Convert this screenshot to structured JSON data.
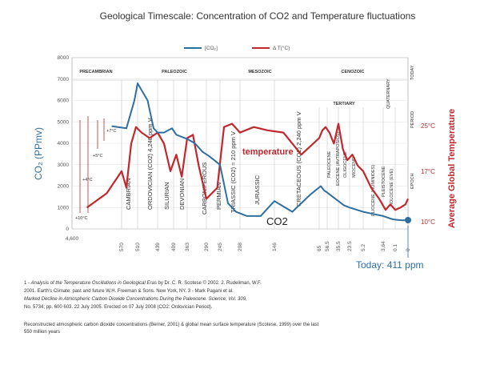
{
  "chart_data": {
    "type": "line",
    "title": "Geological Timescale: Concentration of CO2 and Temperature fluctuations",
    "legend": [
      {
        "name": "[CO₂]",
        "color": "#2f6f9f"
      },
      {
        "name": "Δ T(°C)",
        "color": "#c0282d"
      }
    ],
    "ylabel_left": "CO₂ (PPmv)",
    "ylabel_right": "Average Global Temperature",
    "y_left_ticks": [
      "8000",
      "7000",
      "6000",
      "5000",
      "4000",
      "3000",
      "2000",
      "1000",
      "0"
    ],
    "y_right_ticks": [
      "25°C",
      "17°C",
      "10°C"
    ],
    "y_right_side_labels": [
      "TODAY",
      "PERIOD",
      "EPOCH"
    ],
    "ylim_left": [
      0,
      8000
    ],
    "x_ticks": [
      "4,600",
      "570",
      "510",
      "439",
      "409",
      "363",
      "290",
      "245",
      "208",
      "146",
      "65",
      "56.5",
      "35.5",
      "23.5",
      "5.2",
      "3.64",
      "0.1",
      "0"
    ],
    "eras": [
      "PRECAMBRIAN",
      "PALEOZOIC",
      "MESOZOIC",
      "CENOZOIC"
    ],
    "tertiary": "TERTIARY",
    "quaternary": "QUATERNARY",
    "periods": [
      "CAMBRIAN",
      "ORDOVICIAN (CO2) 4,240 ppm V",
      "SILURIAN",
      "DEVONIAN",
      "CARBONIFEROUS",
      "PERMIAN",
      "TRIASSIC (CO2) = 210 ppm V",
      "JURASSIC",
      "CRETACEOUS (CO2) 2,240 ppm V"
    ],
    "epochs": [
      "PALEOCENE",
      "EOCENE (AVTRAPOSIOS)",
      "OLIGOCENE",
      "MIOCENE",
      "PLIOCENE (HOMINIDES)",
      "PLEISTOCENE",
      "HOLOCENE (EVE)"
    ],
    "temp_annotations": [
      "+7°C",
      "+5°C",
      "+4°C",
      "+10°C"
    ],
    "curve_labels": {
      "temperature": "temperature",
      "co2": "CO2"
    },
    "today": "Today: 411 ppm",
    "series": [
      {
        "name": "[CO₂]",
        "color": "#2f6f9f",
        "x_index": [
          0.8,
          1.3,
          1.8,
          2.0,
          2.5,
          2.8,
          3.0,
          3.4,
          3.9,
          4.2,
          4.6,
          5.0,
          5.4,
          5.8,
          6.2,
          6.6,
          7.0,
          7.4,
          7.8,
          8.2,
          8.6,
          9.0,
          9.4,
          9.8,
          10.2,
          10.6,
          11.0,
          11.5,
          12.0,
          12.5,
          13.0,
          13.5,
          14.0,
          14.5,
          15.0,
          15.5,
          15.8,
          16.2,
          16.6,
          17.0
        ],
        "values": [
          4800,
          4700,
          6000,
          6800,
          6000,
          4700,
          4500,
          4500,
          4700,
          4400,
          4300,
          4200,
          4000,
          3600,
          3400,
          3200,
          3000,
          1200,
          800,
          600,
          600,
          1300,
          800,
          1600,
          2000,
          1800,
          1700,
          1500,
          1300,
          1100,
          1000,
          900,
          800,
          700,
          600,
          500,
          450,
          420,
          400,
          411
        ]
      },
      {
        "name": "Δ T(°C)",
        "color": "#c0282d",
        "x_index": [
          0.3,
          0.7,
          1.0,
          1.3,
          1.6,
          1.9,
          2.2,
          2.6,
          3.0,
          3.4,
          3.8,
          4.2,
          4.6,
          5.0,
          5.3,
          5.6,
          6.0,
          6.4,
          6.8,
          7.2,
          7.6,
          8.0,
          8.4,
          8.8,
          9.2,
          9.6,
          10.0,
          10.4,
          10.8,
          11.2,
          11.6,
          12.0,
          12.4,
          12.8,
          13.2,
          13.6,
          14.0,
          14.4,
          14.8,
          15.2,
          15.6,
          16.0,
          16.4,
          16.8,
          17.0
        ],
        "temp_level": [
          0.12,
          0.25,
          0.45,
          0.3,
          0.7,
          0.85,
          0.8,
          0.75,
          0.8,
          0.7,
          0.45,
          0.6,
          0.4,
          0.75,
          0.78,
          0.5,
          0.2,
          0.25,
          0.3,
          0.85,
          0.88,
          0.8,
          0.85,
          0.82,
          0.8,
          0.6,
          0.75,
          0.82,
          0.85,
          0.8,
          0.7,
          0.88,
          0.65,
          0.55,
          0.6,
          0.5,
          0.45,
          0.3,
          0.2,
          0.1,
          0.15,
          0.1,
          0.12,
          0.15,
          0.2
        ]
      }
    ]
  },
  "footnotes": {
    "line1a": "1 - ",
    "line1b": "Analysis of the Temperature Oscillations in Geological Eras",
    "line1c": " by Dr. C. R. Scotese © 2002. 2. Rudeliman, W.F.",
    "line2": "2001. Earth's Climate: past and future W.H. Freeman & Sons. New York, NY. 3 - Mark Pagani et al.",
    "line3": "Marked Decline in Atmospheric Carbon Dioxide Concentrations During the Paleocene. Science; Vol. 309,",
    "line4": "No. 5734; pp. 600 603. 22 July 2005. Erected on 07 July 2008 (CO2: Ordovician Period).",
    "line5": "Reconstructed atmospheric carbon dioxide concentrations (Berner, 2001) & global mean surface temperature (Scotese, 1999) over the last",
    "line6": "550 million years"
  }
}
